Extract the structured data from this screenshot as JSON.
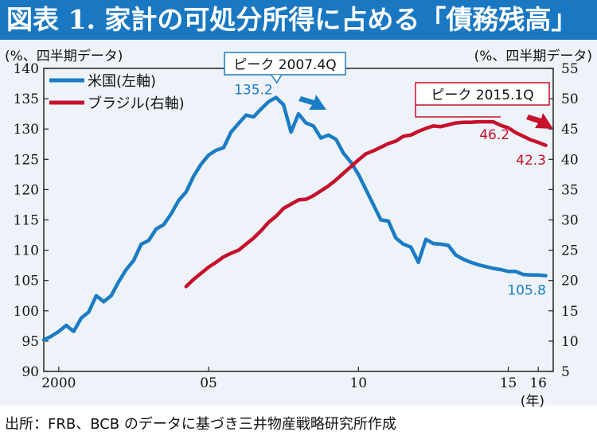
{
  "title": "図表 1. 家計の可処分所得に占める「債務残高」",
  "source": "出所：FRB、BCB のデータに基づき三井物産戦略研究所作成",
  "colors": {
    "title_bg": "#1a78c2",
    "us": "#1a7cc4",
    "brazil": "#c7102b",
    "plot_bg": "#eef3fa"
  },
  "chart_data": {
    "type": "line",
    "left_axis": {
      "unit_label": "(%、四半期データ)",
      "range": [
        90,
        140
      ],
      "ticks": [
        90,
        95,
        100,
        105,
        110,
        115,
        120,
        125,
        130,
        135,
        140
      ]
    },
    "right_axis": {
      "unit_label": "(%、四半期データ)",
      "range": [
        5,
        55
      ],
      "ticks": [
        5,
        10,
        15,
        20,
        25,
        30,
        35,
        40,
        45,
        50,
        55
      ]
    },
    "x_axis": {
      "range": [
        2000.0,
        2017.0
      ],
      "ticks": [
        {
          "label": "2000",
          "x": 2000.5
        },
        {
          "label": "05",
          "x": 2005.5
        },
        {
          "label": "10",
          "x": 2010.5
        },
        {
          "label": "15",
          "x": 2015.5
        },
        {
          "label": "16",
          "x": 2016.5
        }
      ],
      "unit": "(年)"
    },
    "legend": {
      "position": "top-left",
      "items": [
        "米国(左軸)",
        "ブラジル(右軸)"
      ]
    },
    "series": [
      {
        "name": "米国(左軸)",
        "axis": "left",
        "x": [
          2000.0,
          2000.25,
          2000.5,
          2000.75,
          2001.0,
          2001.25,
          2001.5,
          2001.75,
          2002.0,
          2002.25,
          2002.5,
          2002.75,
          2003.0,
          2003.25,
          2003.5,
          2003.75,
          2004.0,
          2004.25,
          2004.5,
          2004.75,
          2005.0,
          2005.25,
          2005.5,
          2005.75,
          2006.0,
          2006.25,
          2006.5,
          2006.75,
          2007.0,
          2007.25,
          2007.5,
          2007.75,
          2008.0,
          2008.25,
          2008.5,
          2008.75,
          2009.0,
          2009.25,
          2009.5,
          2009.75,
          2010.0,
          2010.25,
          2010.5,
          2010.75,
          2011.0,
          2011.25,
          2011.5,
          2011.75,
          2012.0,
          2012.25,
          2012.5,
          2012.75,
          2013.0,
          2013.25,
          2013.5,
          2013.75,
          2014.0,
          2014.25,
          2014.5,
          2014.75,
          2015.0,
          2015.25,
          2015.5,
          2015.75,
          2016.0,
          2016.25,
          2016.5,
          2016.75
        ],
        "values": [
          95.2,
          95.8,
          96.6,
          97.6,
          96.6,
          98.8,
          99.8,
          102.5,
          101.5,
          102.5,
          104.8,
          106.8,
          108.3,
          111.0,
          111.6,
          113.5,
          114.2,
          116.0,
          118.2,
          119.6,
          122.2,
          124.2,
          125.7,
          126.5,
          126.9,
          129.5,
          130.9,
          132.3,
          132.0,
          133.3,
          134.5,
          135.2,
          134.0,
          129.5,
          132.5,
          131.0,
          130.5,
          128.5,
          129.0,
          128.3,
          126.0,
          124.5,
          122.5,
          120.0,
          117.5,
          115.0,
          114.8,
          112.0,
          111.0,
          110.5,
          108.0,
          111.8,
          111.1,
          111.0,
          110.8,
          109.2,
          108.5,
          108.0,
          107.6,
          107.3,
          107.0,
          106.8,
          106.5,
          106.5,
          106.0,
          105.9,
          105.9,
          105.8
        ]
      },
      {
        "name": "ブラジル(右軸)",
        "axis": "right",
        "x": [
          2004.75,
          2005.0,
          2005.25,
          2005.5,
          2005.75,
          2006.0,
          2006.25,
          2006.5,
          2006.75,
          2007.0,
          2007.25,
          2007.5,
          2007.75,
          2008.0,
          2008.25,
          2008.5,
          2008.75,
          2009.0,
          2009.25,
          2009.5,
          2009.75,
          2010.0,
          2010.25,
          2010.5,
          2010.75,
          2011.0,
          2011.25,
          2011.5,
          2011.75,
          2012.0,
          2012.25,
          2012.5,
          2012.75,
          2013.0,
          2013.25,
          2013.5,
          2013.75,
          2014.0,
          2014.25,
          2014.5,
          2014.75,
          2015.0,
          2015.25,
          2015.5,
          2015.75,
          2016.0,
          2016.25,
          2016.5,
          2016.75
        ],
        "values": [
          19.0,
          20.2,
          21.2,
          22.2,
          23.0,
          23.9,
          24.5,
          25.0,
          26.0,
          27.0,
          28.2,
          29.6,
          30.6,
          31.9,
          32.6,
          33.3,
          33.4,
          34.0,
          34.8,
          35.6,
          36.6,
          37.7,
          38.8,
          39.9,
          40.9,
          41.4,
          42.0,
          42.6,
          43.0,
          43.8,
          44.0,
          44.6,
          45.1,
          45.5,
          45.4,
          45.7,
          46.0,
          46.1,
          46.1,
          46.2,
          46.2,
          46.2,
          45.6,
          45.2,
          44.4,
          43.8,
          43.2,
          42.8,
          42.3
        ]
      }
    ],
    "annotations": [
      {
        "text": "ピーク 2007.4Q",
        "series": "米国(左軸)",
        "value_label": "135.2"
      },
      {
        "text": "ピーク 2015.1Q",
        "series": "ブラジル(右軸)",
        "value_label": "46.2"
      }
    ],
    "end_labels": [
      {
        "series": "米国(左軸)",
        "text": "105.8"
      },
      {
        "series": "ブラジル(右軸)",
        "text": "42.3"
      }
    ]
  }
}
